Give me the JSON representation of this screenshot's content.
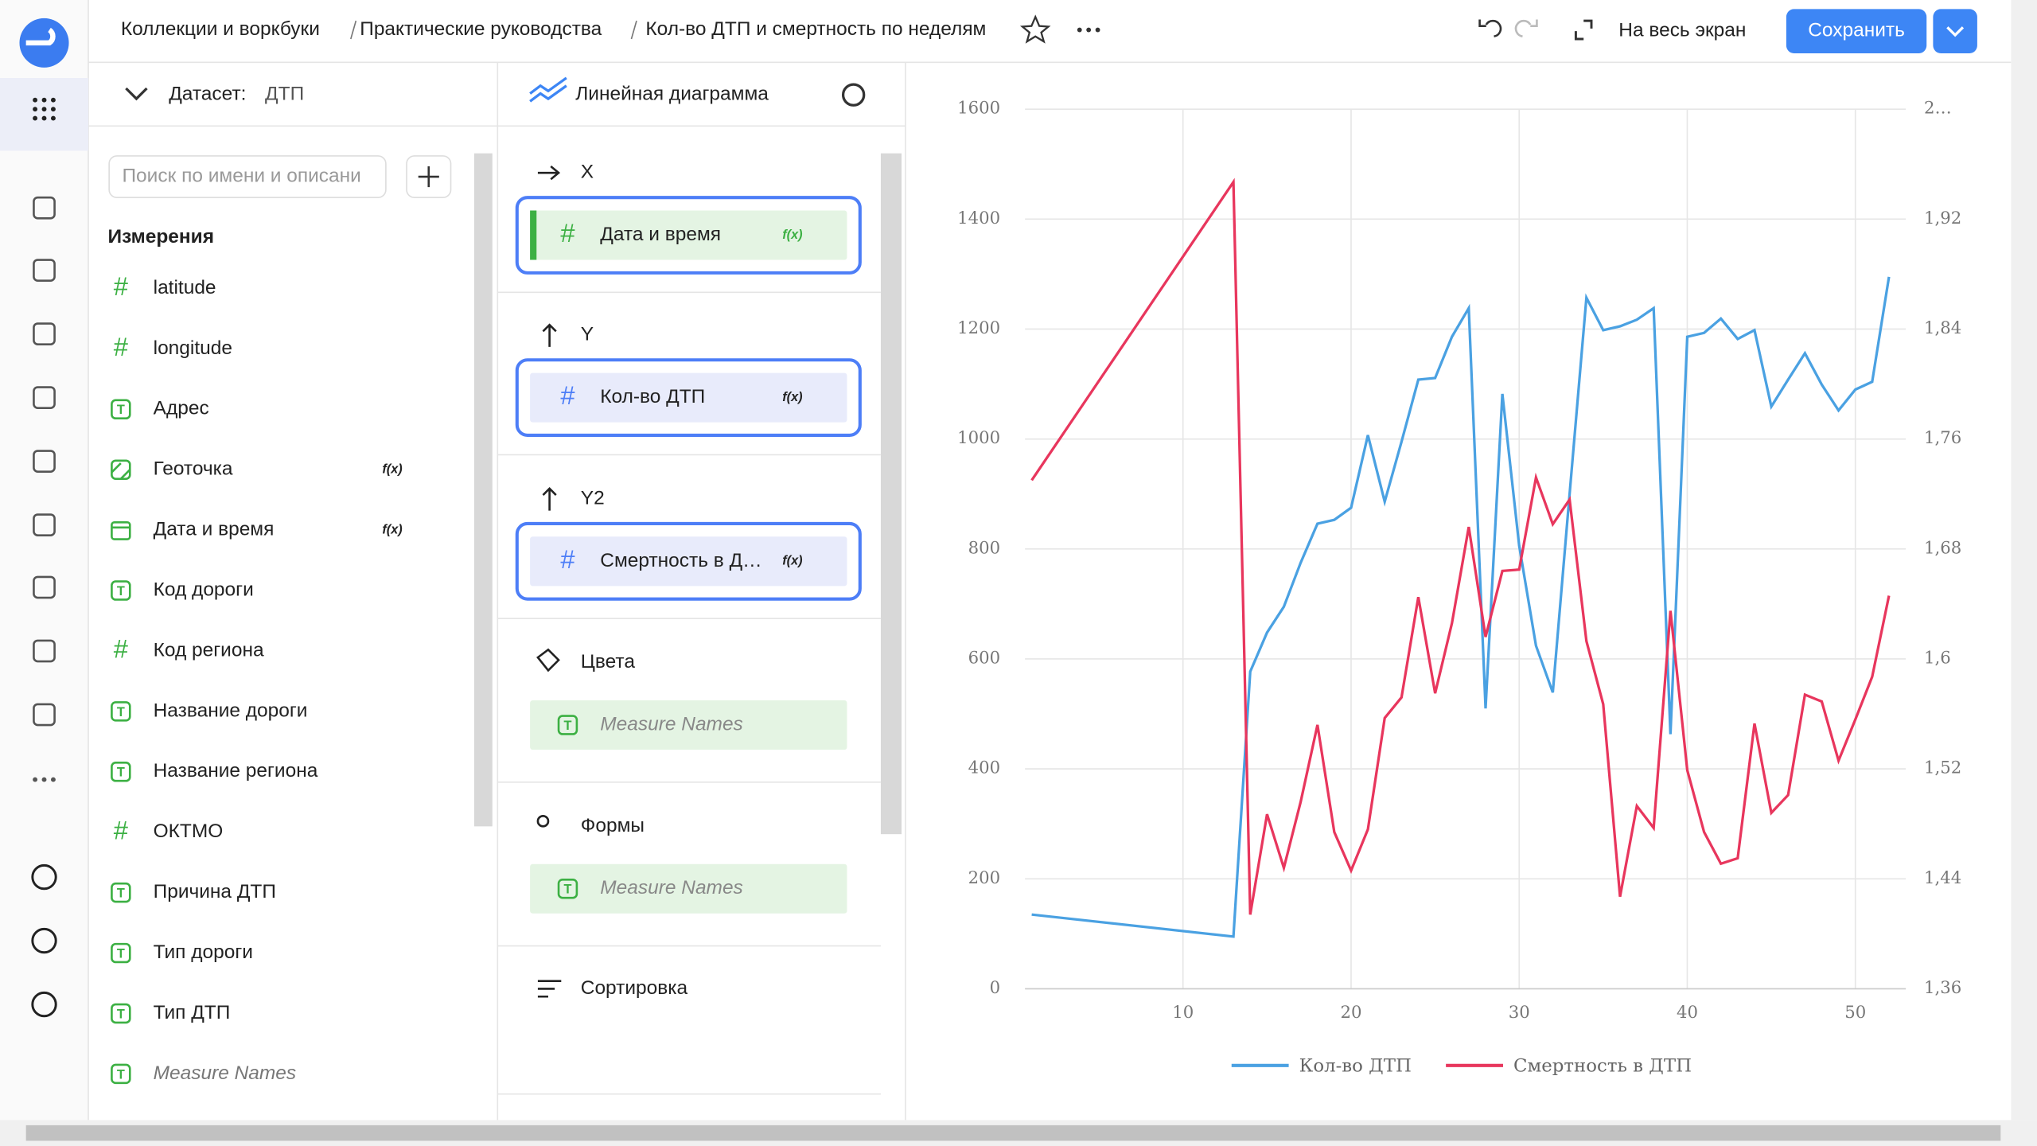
{
  "header": {
    "breadcrumbs": [
      "Коллекции и воркбуки",
      "Практические руководства",
      "Кол-во ДТП и смертность по неделям"
    ],
    "fullscreen": "На весь экран",
    "save": "Сохранить"
  },
  "dataset": {
    "label": "Датасет:",
    "name": "ДТП",
    "search_placeholder": "Поиск по имени и описани",
    "section": "Измерения",
    "fields": [
      {
        "icon": "#",
        "name": "latitude"
      },
      {
        "icon": "#",
        "name": "longitude"
      },
      {
        "icon": "T",
        "name": "Адрес"
      },
      {
        "icon": "geo",
        "name": "Геоточка",
        "badge": "f(x)"
      },
      {
        "icon": "date",
        "name": "Дата и время",
        "badge": "f(x)"
      },
      {
        "icon": "T",
        "name": "Код дороги"
      },
      {
        "icon": "#",
        "name": "Код региона"
      },
      {
        "icon": "T",
        "name": "Название дороги"
      },
      {
        "icon": "T",
        "name": "Название региона"
      },
      {
        "icon": "#",
        "name": "ОКТМО"
      },
      {
        "icon": "T",
        "name": "Причина ДТП"
      },
      {
        "icon": "T",
        "name": "Тип дороги"
      },
      {
        "icon": "T",
        "name": "Тип ДТП"
      },
      {
        "icon": "T",
        "name": "Measure Names"
      }
    ]
  },
  "wizard": {
    "chart_type": "Линейная диаграмма",
    "sections": [
      {
        "title": "X",
        "field": {
          "icon": "#",
          "name": "Дата и время",
          "badge": "f(x)"
        }
      },
      {
        "title": "Y",
        "field": {
          "icon": "#",
          "name": "Кол-во ДТП",
          "badge": "f(x)"
        }
      },
      {
        "title": "Y2",
        "field": {
          "icon": "#",
          "name": "Смертность в Д…",
          "badge": "f(x)"
        }
      },
      {
        "title": "Цвета",
        "field": {
          "icon": "T",
          "name": "Measure Names"
        }
      },
      {
        "title": "Формы",
        "field": {
          "icon": "T",
          "name": "Measure Names"
        }
      },
      {
        "title": "Сортировка"
      }
    ]
  },
  "chart_data": {
    "type": "line",
    "x": [
      1,
      13,
      14,
      15,
      16,
      17,
      18,
      19,
      20,
      21,
      22,
      23,
      24,
      25,
      26,
      27,
      28,
      29,
      30,
      31,
      32,
      33,
      34,
      35,
      36,
      37,
      38,
      39,
      40,
      41,
      42,
      43,
      44,
      45,
      46,
      47,
      48,
      49,
      50,
      51,
      52
    ],
    "series": [
      {
        "name": "Кол-во ДТП",
        "color": "#4aa1e2",
        "values": [
          135,
          95,
          577,
          648,
          695,
          775,
          846,
          853,
          875,
          1007,
          886,
          995,
          1108,
          1111,
          1186,
          1238,
          510,
          1082,
          806,
          624,
          539,
          900,
          1257,
          1198,
          1205,
          1217,
          1238,
          463,
          1186,
          1193,
          1219,
          1182,
          1198,
          1059,
          1108,
          1156,
          1099,
          1052,
          1090,
          1104,
          1295
        ]
      },
      {
        "name": "Смертность в ДТП",
        "color": "#e8365d",
        "axis": "y2",
        "values": [
          1.73,
          1.947,
          1.414,
          1.487,
          1.448,
          1.496,
          1.552,
          1.474,
          1.446,
          1.476,
          1.557,
          1.572,
          1.645,
          1.575,
          1.626,
          1.696,
          1.616,
          1.664,
          1.665,
          1.732,
          1.698,
          1.716,
          1.613,
          1.567,
          1.427,
          1.493,
          1.477,
          1.635,
          1.519,
          1.474,
          1.451,
          1.455,
          1.553,
          1.488,
          1.501,
          1.574,
          1.569,
          1.526,
          1.556,
          1.587,
          1.646
        ]
      }
    ],
    "xlim": [
      0.6,
      53
    ],
    "xticks": [
      10,
      20,
      30,
      40,
      50
    ],
    "ylim": [
      0,
      1600
    ],
    "yticks": [
      0,
      200,
      400,
      600,
      800,
      1000,
      1200,
      1400,
      1600
    ],
    "y2lim": [
      1.36,
      2
    ],
    "y2ticks": [
      {
        "value": 1.36,
        "label": "1,36"
      },
      {
        "value": 1.44,
        "label": "1,44"
      },
      {
        "value": 1.52,
        "label": "1,52"
      },
      {
        "value": 1.6,
        "label": "1,6"
      },
      {
        "value": 1.68,
        "label": "1,68"
      },
      {
        "value": 1.76,
        "label": "1,76"
      },
      {
        "value": 1.84,
        "label": "1,84"
      },
      {
        "value": 1.92,
        "label": "1,92"
      },
      {
        "value": 2,
        "label": "2…"
      }
    ],
    "grid": true,
    "legend": "bottom"
  }
}
